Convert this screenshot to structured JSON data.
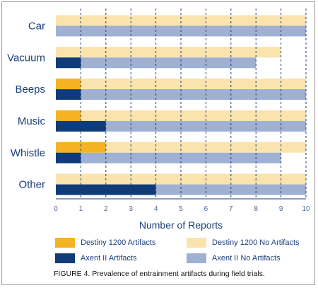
{
  "figure": {
    "caption": "FIGURE 4. Prevalence of entrainment artifacts during field trials."
  },
  "legend": {
    "items": [
      {
        "label": "Destiny 1200 Artifacts",
        "color": "#f5b324"
      },
      {
        "label": "Destiny 1200 No Artifacts",
        "color": "#fbe3ae"
      },
      {
        "label": "Axent II Artifacts",
        "color": "#0f3c78"
      },
      {
        "label": "Axent II No Artifacts",
        "color": "#9fb0d3"
      }
    ]
  },
  "chart_data": {
    "type": "bar",
    "orientation": "horizontal",
    "stacked": true,
    "title": "",
    "xlabel": "Number of Reports",
    "ylabel": "",
    "xlim": [
      0,
      10
    ],
    "xticks": [
      0,
      1,
      2,
      3,
      4,
      5,
      6,
      7,
      8,
      9,
      10
    ],
    "grid": "vertical dashed",
    "categories": [
      "Car",
      "Vacuum",
      "Beeps",
      "Music",
      "Whistle",
      "Other"
    ],
    "groups": [
      {
        "name": "Destiny 1200",
        "series": [
          {
            "name": "Destiny 1200 Artifacts",
            "color": "#f5b324",
            "values": [
              0,
              0,
              1,
              1,
              2,
              0
            ]
          },
          {
            "name": "Destiny 1200 No Artifacts",
            "color": "#fbe3ae",
            "values": [
              10,
              9,
              9,
              9,
              8,
              10
            ]
          }
        ]
      },
      {
        "name": "Axent II",
        "series": [
          {
            "name": "Axent II Artifacts",
            "color": "#0f3c78",
            "values": [
              0,
              1,
              1,
              2,
              1,
              4
            ]
          },
          {
            "name": "Axent II No Artifacts",
            "color": "#9fb0d3",
            "values": [
              10,
              7,
              9,
              8,
              8,
              6
            ]
          }
        ]
      }
    ]
  }
}
